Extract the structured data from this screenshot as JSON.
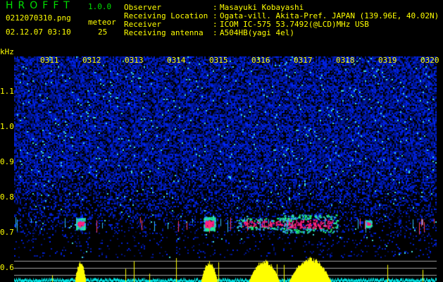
{
  "header": {
    "app_title": "HROFFT",
    "version": "1.0.0",
    "filename": "0212070310.png",
    "datetime": "02.12.07 03:10",
    "meteor_label": "meteor",
    "meteor_count": "25"
  },
  "info": [
    {
      "label": "Observer",
      "value": "Masayuki Kobayashi"
    },
    {
      "label": "Receiving Location",
      "value": "Ogata-vill. Akita-Pref. JAPAN (139.96E, 40.02N)"
    },
    {
      "label": "Receiver",
      "value": "ICOM IC-575 53.7492(@LCD)MHz USB"
    },
    {
      "label": "Receiving antenna",
      "value": "A504HB(yagi 4el)"
    }
  ],
  "colors": {
    "text": "#ffff00",
    "title": "#00e000",
    "noise": "#1020c0",
    "echo": "#ff2080",
    "histogram": "#ffff00",
    "baseline": "#00e0e0"
  },
  "chart_data": {
    "type": "heatmap",
    "ylabel": "kHz",
    "x_ticks": [
      "0311",
      "0312",
      "0313",
      "0314",
      "0315",
      "0316",
      "0317",
      "0318",
      "0319",
      "0320"
    ],
    "y_ticks": [
      "1.1",
      "1.0",
      "0.9",
      "0.8",
      "0.7",
      "0.6"
    ],
    "ylim": [
      0.56,
      1.2
    ],
    "echo_frequency_khz": 0.72
  }
}
